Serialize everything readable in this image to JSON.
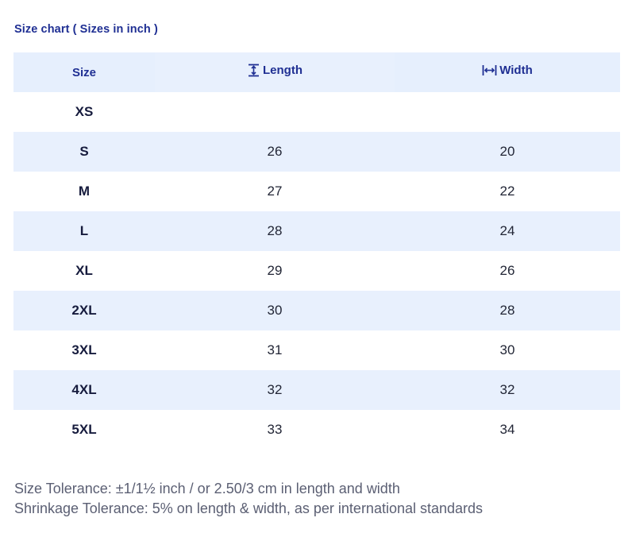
{
  "title": "Size chart ( Sizes in inch )",
  "table": {
    "headers": {
      "size": "Size",
      "length": "Length",
      "width": "Width"
    },
    "icons": {
      "length": "vertical-height-arrow-icon",
      "width": "horizontal-width-arrow-icon"
    },
    "rows": [
      {
        "size": "XS",
        "length": "",
        "width": ""
      },
      {
        "size": "S",
        "length": "26",
        "width": "20"
      },
      {
        "size": "M",
        "length": "27",
        "width": "22"
      },
      {
        "size": "L",
        "length": "28",
        "width": "24"
      },
      {
        "size": "XL",
        "length": "29",
        "width": "26"
      },
      {
        "size": "2XL",
        "length": "30",
        "width": "28"
      },
      {
        "size": "3XL",
        "length": "31",
        "width": "30"
      },
      {
        "size": "4XL",
        "length": "32",
        "width": "32"
      },
      {
        "size": "5XL",
        "length": "33",
        "width": "34"
      }
    ]
  },
  "notes": {
    "size_tolerance": "Size Tolerance: ±1/1½ inch / or 2.50/3 cm in length and width",
    "shrinkage_tolerance": "Shrinkage Tolerance: 5% on length & width, as per international standards"
  },
  "colors": {
    "accent": "#1f2f93",
    "row_stripe": "#e8f0fd",
    "header_bg": "#e6effd",
    "note_text": "#5b5f73"
  }
}
